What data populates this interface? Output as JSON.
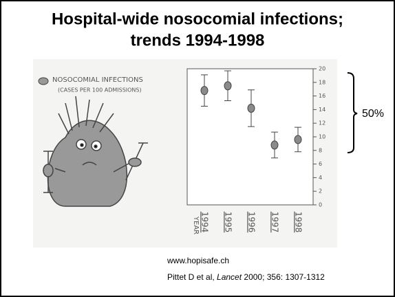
{
  "slide": {
    "title": [
      "Hospital-wide nosocomial infections;",
      "trends 1994-1998"
    ],
    "annotation": "50%",
    "source": "www.hopisafe.ch",
    "citation": {
      "before": "Pittet D et al, ",
      "journal": "Lancet",
      "after": " 2000; 356: 1307-1312"
    }
  },
  "chart_data": {
    "type": "errorbar",
    "legend": [
      "NOSOCOMIAL INFECTIONS",
      "(CASES PER 100 ADMISSIONS)"
    ],
    "x_label": "YEAR",
    "categories": [
      "1994",
      "1995",
      "1996",
      "1997",
      "1998"
    ],
    "series": [
      {
        "name": "NOSOCOMIAL INFECTIONS",
        "color": "#8a8a8a",
        "values": [
          16.8,
          17.5,
          14.2,
          8.8,
          9.6
        ],
        "errors": [
          2.3,
          2.2,
          2.7,
          1.9,
          1.8
        ]
      }
    ],
    "ylim": [
      0,
      20
    ],
    "yticks": [
      0,
      2,
      4,
      6,
      8,
      10,
      12,
      14,
      16,
      18,
      20
    ]
  }
}
